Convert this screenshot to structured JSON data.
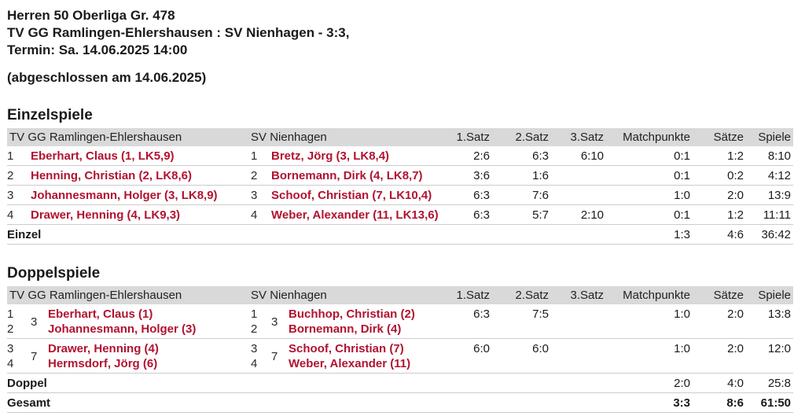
{
  "header": {
    "line1": "Herren 50 Oberliga Gr. 478",
    "line2": "TV GG Ramlingen-Ehlershausen : SV Nienhagen - 3:3,",
    "line3": "Termin: Sa. 14.06.2025 14:00",
    "status": "(abgeschlossen am 14.06.2025)"
  },
  "colors": {
    "player_link_red": "#b11330",
    "table_header_bg": "#d9d9d9",
    "row_divider": "#cccccc"
  },
  "columns": {
    "home_team": "TV GG Ramlingen-Ehlershausen",
    "guest_team": "SV Nienhagen",
    "set1": "1.Satz",
    "set2": "2.Satz",
    "set3": "3.Satz",
    "matchpoints": "Matchpunkte",
    "sets": "Sätze",
    "games": "Spiele"
  },
  "singles": {
    "heading": "Einzelspiele",
    "rows": [
      {
        "pos_home": "1",
        "home": "Eberhart, Claus (1, LK5,9)",
        "pos_guest": "1",
        "guest": "Bretz, Jörg (3, LK8,4)",
        "set1": "2:6",
        "set2": "6:3",
        "set3": "6:10",
        "matchpoints": "0:1",
        "sets": "1:2",
        "games": "8:10"
      },
      {
        "pos_home": "2",
        "home": "Henning, Christian (2, LK8,6)",
        "pos_guest": "2",
        "guest": "Bornemann, Dirk (4, LK8,7)",
        "set1": "3:6",
        "set2": "1:6",
        "set3": "",
        "matchpoints": "0:1",
        "sets": "0:2",
        "games": "4:12"
      },
      {
        "pos_home": "3",
        "home": "Johannesmann, Holger (3, LK8,9)",
        "pos_guest": "3",
        "guest": "Schoof, Christian (7, LK10,4)",
        "set1": "6:3",
        "set2": "7:6",
        "set3": "",
        "matchpoints": "1:0",
        "sets": "2:0",
        "games": "13:9"
      },
      {
        "pos_home": "4",
        "home": "Drawer, Henning (4, LK9,3)",
        "pos_guest": "4",
        "guest": "Weber, Alexander (11, LK13,6)",
        "set1": "6:3",
        "set2": "5:7",
        "set3": "2:10",
        "matchpoints": "0:1",
        "sets": "1:2",
        "games": "11:11"
      }
    ],
    "total": {
      "label": "Einzel",
      "matchpoints": "1:3",
      "sets": "4:6",
      "games": "36:42"
    }
  },
  "doubles": {
    "heading": "Doppelspiele",
    "rows": [
      {
        "pos1": "1",
        "pos2": "2",
        "pair_home": "3",
        "home1": "Eberhart, Claus (1)",
        "home2": "Johannesmann, Holger (3)",
        "gpos1": "1",
        "gpos2": "2",
        "pair_guest": "3",
        "guest1": "Buchhop, Christian (2)",
        "guest2": "Bornemann, Dirk (4)",
        "set1": "6:3",
        "set2": "7:5",
        "set3": "",
        "matchpoints": "1:0",
        "sets": "2:0",
        "games": "13:8"
      },
      {
        "pos1": "3",
        "pos2": "4",
        "pair_home": "7",
        "home1": "Drawer, Henning (4)",
        "home2": "Hermsdorf, Jörg (6)",
        "gpos1": "3",
        "gpos2": "4",
        "pair_guest": "7",
        "guest1": "Schoof, Christian (7)",
        "guest2": "Weber, Alexander (11)",
        "set1": "6:0",
        "set2": "6:0",
        "set3": "",
        "matchpoints": "1:0",
        "sets": "2:0",
        "games": "12:0"
      }
    ],
    "total": {
      "label": "Doppel",
      "matchpoints": "2:0",
      "sets": "4:0",
      "games": "25:8"
    }
  },
  "overall": {
    "label": "Gesamt",
    "matchpoints": "3:3",
    "sets": "8:6",
    "games": "61:50"
  }
}
